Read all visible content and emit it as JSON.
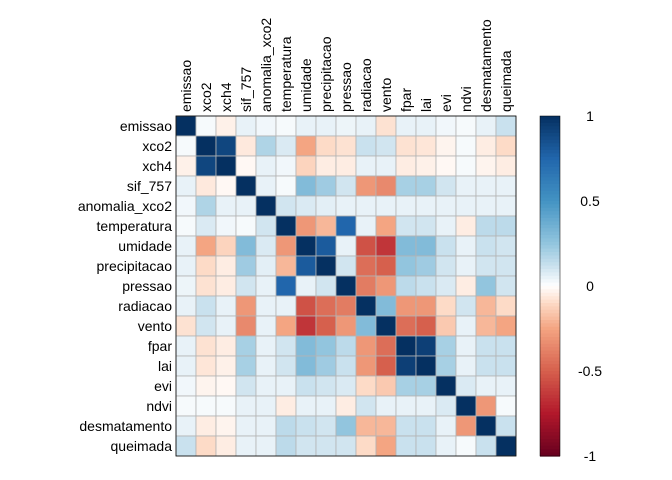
{
  "chart_data": {
    "type": "heatmap",
    "title": "",
    "variables": [
      "emissao",
      "xco2",
      "xch4",
      "sif_757",
      "anomalia_xco2",
      "temperatura",
      "umidade",
      "precipitacao",
      "pressao",
      "radiacao",
      "vento",
      "fpar",
      "lai",
      "evi",
      "ndvi",
      "desmatamento",
      "queimada"
    ],
    "matrix": [
      [
        1,
        0.02,
        -0.04,
        0.05,
        0.03,
        0.02,
        0.05,
        0.05,
        0.04,
        0.05,
        -0.08,
        0.05,
        0.05,
        0.03,
        0.02,
        0.05,
        0.12
      ],
      [
        0.02,
        1,
        0.9,
        -0.06,
        0.18,
        0.08,
        -0.25,
        -0.1,
        -0.08,
        0.12,
        0.1,
        -0.08,
        -0.07,
        -0.03,
        0.02,
        -0.05,
        -0.1
      ],
      [
        -0.04,
        0.9,
        1,
        -0.02,
        0.05,
        0.03,
        -0.12,
        -0.05,
        -0.05,
        0.05,
        0.05,
        -0.05,
        -0.04,
        -0.02,
        0.02,
        -0.03,
        -0.05
      ],
      [
        0.05,
        -0.06,
        -0.02,
        1,
        0.05,
        0.02,
        0.3,
        0.22,
        0.1,
        -0.3,
        -0.35,
        0.2,
        0.2,
        0.1,
        0.05,
        0.05,
        0.05
      ],
      [
        0.03,
        0.18,
        0.05,
        0.05,
        1,
        0.1,
        0.08,
        0.06,
        0.05,
        0.05,
        0.05,
        0.05,
        0.05,
        0.05,
        0.05,
        0.05,
        0.05
      ],
      [
        0.02,
        0.08,
        0.03,
        0.02,
        0.1,
        1,
        -0.3,
        -0.2,
        0.75,
        0.05,
        -0.25,
        0.1,
        0.1,
        0.05,
        -0.05,
        0.15,
        0.15
      ],
      [
        0.05,
        -0.25,
        -0.12,
        0.3,
        0.08,
        -0.3,
        1,
        0.8,
        0.05,
        -0.55,
        -0.65,
        0.3,
        0.3,
        0.12,
        0.05,
        0.12,
        0.1
      ],
      [
        0.05,
        -0.1,
        -0.05,
        0.22,
        0.06,
        -0.2,
        0.8,
        1,
        0.1,
        -0.45,
        -0.5,
        0.25,
        0.22,
        0.1,
        0.05,
        0.1,
        0.1
      ],
      [
        0.04,
        -0.08,
        -0.05,
        0.1,
        0.05,
        0.75,
        0.05,
        0.1,
        1,
        -0.4,
        -0.3,
        0.15,
        0.12,
        0.08,
        -0.05,
        0.25,
        0.1
      ],
      [
        0.05,
        0.12,
        0.05,
        -0.3,
        0.05,
        0.05,
        -0.55,
        -0.45,
        -0.4,
        1,
        0.3,
        -0.3,
        -0.3,
        -0.1,
        0.1,
        -0.2,
        -0.1
      ],
      [
        -0.08,
        0.1,
        0.05,
        -0.35,
        0.05,
        -0.25,
        -0.65,
        -0.5,
        -0.3,
        0.3,
        1,
        -0.45,
        -0.5,
        -0.15,
        0.05,
        -0.2,
        -0.25
      ],
      [
        0.05,
        -0.08,
        -0.05,
        0.2,
        0.05,
        0.1,
        0.3,
        0.25,
        0.15,
        -0.3,
        -0.45,
        1,
        0.93,
        0.2,
        0.05,
        0.12,
        0.12
      ],
      [
        0.05,
        -0.07,
        -0.04,
        0.2,
        0.05,
        0.1,
        0.3,
        0.22,
        0.12,
        -0.3,
        -0.5,
        0.93,
        1,
        0.2,
        0.05,
        0.12,
        0.12
      ],
      [
        0.03,
        -0.03,
        -0.02,
        0.1,
        0.05,
        0.05,
        0.12,
        0.1,
        0.08,
        -0.1,
        -0.15,
        0.2,
        0.2,
        1,
        0.08,
        0.05,
        0.05
      ],
      [
        0.02,
        0.02,
        0.02,
        0.05,
        0.05,
        -0.05,
        0.05,
        0.05,
        -0.05,
        0.1,
        0.05,
        0.05,
        0.05,
        0.08,
        1,
        -0.3,
        0.02
      ],
      [
        0.05,
        -0.05,
        -0.03,
        0.05,
        0.05,
        0.15,
        0.12,
        0.1,
        0.25,
        -0.2,
        -0.2,
        0.12,
        0.12,
        0.05,
        -0.3,
        1,
        0.12
      ],
      [
        0.12,
        -0.1,
        -0.05,
        0.05,
        0.05,
        0.15,
        0.1,
        0.1,
        0.1,
        -0.1,
        -0.25,
        0.12,
        0.12,
        0.05,
        0.02,
        0.12,
        1
      ]
    ],
    "color_scale": {
      "min": -1,
      "max": 1,
      "low_color": "#67001f",
      "mid_color": "#ffffff",
      "high_color": "#053061"
    },
    "colorbar": {
      "ticks": [
        1,
        0.5,
        0,
        -0.5,
        -1
      ],
      "tick_labels": [
        "1",
        "0.5",
        "0",
        "-0.5",
        "-1"
      ]
    },
    "grid": true,
    "legend_placement": "right"
  }
}
